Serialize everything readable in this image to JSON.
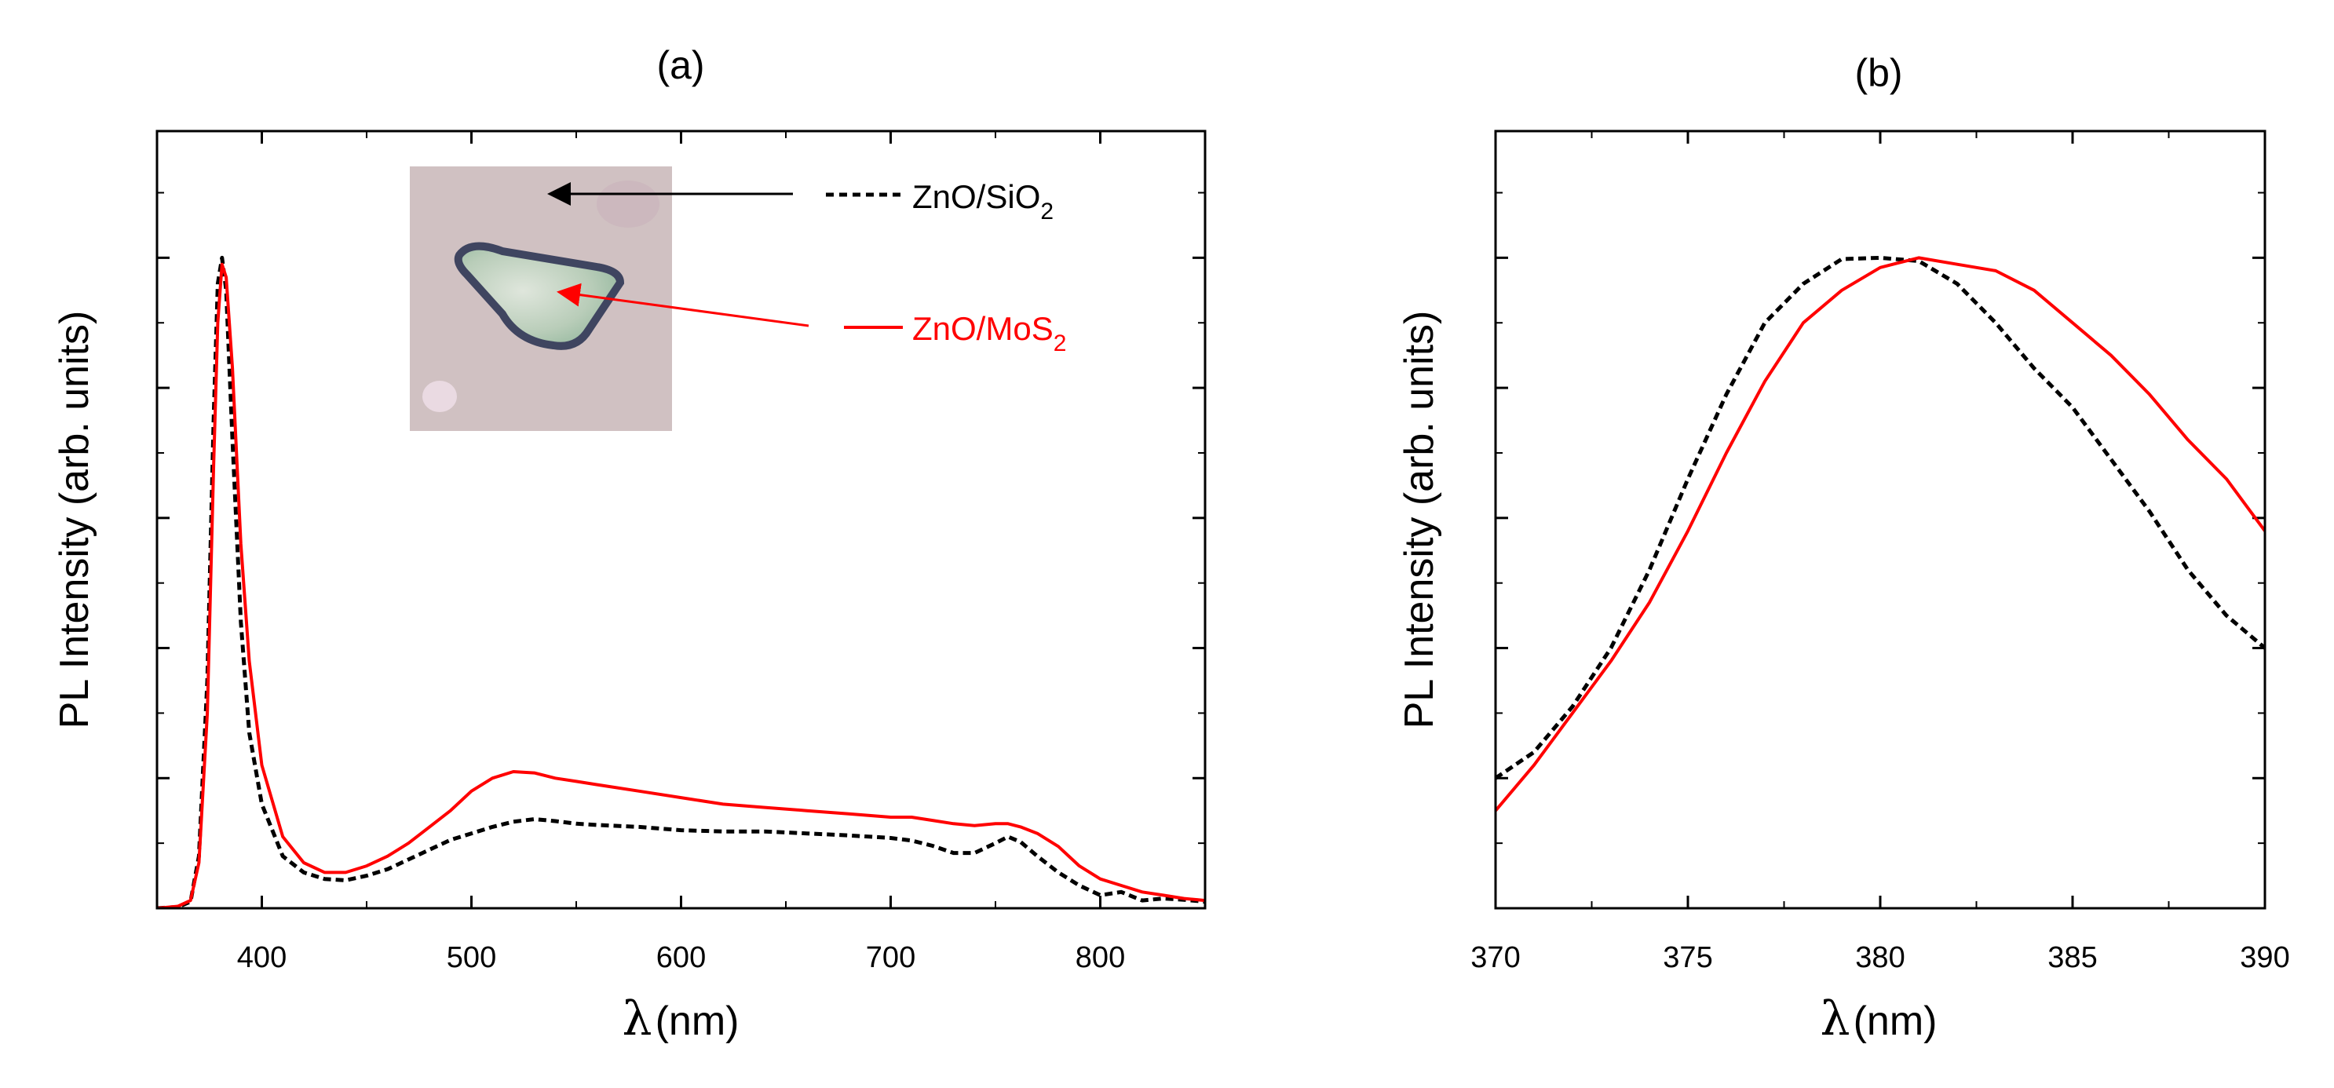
{
  "figure": {
    "inset_label_sio2": "ZnO/SiO",
    "inset_label_sio2_sub": "2",
    "inset_label_mos2": "ZnO/MoS",
    "inset_label_mos2_sub": "2"
  },
  "colors": {
    "sio2": "#000000",
    "mos2": "#ff0000",
    "axis": "#000000"
  },
  "chart_data": [
    {
      "type": "line",
      "panel_label": "(a)",
      "title": "(a)",
      "xlabel_symbol": "λ",
      "xlabel_unit": "(nm)",
      "ylabel": "PL Intensity (arb. units)",
      "xlim": [
        350,
        850
      ],
      "ylim": [
        0,
        1.0
      ],
      "xticks": [
        400,
        500,
        600,
        700,
        800
      ],
      "ytick_count": 5,
      "series": [
        {
          "name": "ZnO/SiO2",
          "style": "dashed",
          "color": "#000000",
          "x": [
            350,
            360,
            366,
            370,
            374,
            377,
            379,
            381,
            383,
            386,
            390,
            394,
            400,
            410,
            420,
            430,
            440,
            450,
            460,
            470,
            480,
            490,
            500,
            510,
            520,
            530,
            540,
            550,
            560,
            580,
            600,
            620,
            640,
            660,
            680,
            700,
            710,
            720,
            730,
            740,
            750,
            756,
            762,
            770,
            780,
            790,
            800,
            810,
            820,
            830,
            840,
            850
          ],
          "y": [
            0,
            0.002,
            0.01,
            0.08,
            0.35,
            0.75,
            0.96,
            1.0,
            0.95,
            0.72,
            0.44,
            0.27,
            0.16,
            0.08,
            0.055,
            0.045,
            0.043,
            0.05,
            0.06,
            0.075,
            0.09,
            0.105,
            0.115,
            0.125,
            0.133,
            0.137,
            0.134,
            0.13,
            0.128,
            0.125,
            0.12,
            0.118,
            0.118,
            0.115,
            0.112,
            0.108,
            0.104,
            0.096,
            0.085,
            0.085,
            0.1,
            0.11,
            0.102,
            0.08,
            0.055,
            0.035,
            0.02,
            0.025,
            0.012,
            0.015,
            0.013,
            0.01
          ]
        },
        {
          "name": "ZnO/MoS2",
          "style": "solid",
          "color": "#ff0000",
          "x": [
            350,
            360,
            366,
            370,
            374,
            377,
            379,
            381,
            383,
            386,
            390,
            394,
            400,
            410,
            420,
            430,
            440,
            450,
            460,
            470,
            480,
            490,
            500,
            510,
            520,
            530,
            540,
            550,
            560,
            580,
            600,
            620,
            640,
            660,
            680,
            700,
            710,
            720,
            730,
            740,
            750,
            756,
            762,
            770,
            780,
            790,
            800,
            810,
            820,
            830,
            840,
            850
          ],
          "y": [
            0,
            0.003,
            0.012,
            0.07,
            0.3,
            0.68,
            0.9,
            0.99,
            0.97,
            0.83,
            0.56,
            0.38,
            0.22,
            0.11,
            0.07,
            0.055,
            0.055,
            0.065,
            0.08,
            0.1,
            0.125,
            0.15,
            0.18,
            0.2,
            0.21,
            0.208,
            0.2,
            0.195,
            0.19,
            0.18,
            0.17,
            0.16,
            0.155,
            0.15,
            0.145,
            0.14,
            0.14,
            0.135,
            0.13,
            0.127,
            0.13,
            0.13,
            0.125,
            0.115,
            0.095,
            0.065,
            0.045,
            0.035,
            0.025,
            0.02,
            0.015,
            0.012
          ]
        }
      ]
    },
    {
      "type": "line",
      "panel_label": "(b)",
      "title": "(b)",
      "xlabel_symbol": "λ",
      "xlabel_unit": "(nm)",
      "ylabel": "PL Intensity (arb. units)",
      "xlim": [
        370,
        390
      ],
      "ylim": [
        0,
        1.0
      ],
      "xticks": [
        370,
        375,
        380,
        385,
        390
      ],
      "ytick_count": 5,
      "series": [
        {
          "name": "ZnO/SiO2",
          "style": "dashed",
          "color": "#000000",
          "x": [
            370,
            371,
            372,
            373,
            374,
            375,
            376,
            377,
            378,
            379,
            380,
            381,
            382,
            383,
            384,
            385,
            386,
            387,
            388,
            389,
            390
          ],
          "y": [
            0.2,
            0.24,
            0.31,
            0.4,
            0.52,
            0.66,
            0.79,
            0.9,
            0.96,
            0.998,
            1.0,
            0.995,
            0.96,
            0.9,
            0.83,
            0.77,
            0.69,
            0.61,
            0.52,
            0.45,
            0.4
          ]
        },
        {
          "name": "ZnO/MoS2",
          "style": "solid",
          "color": "#ff0000",
          "x": [
            370,
            371,
            372,
            373,
            374,
            375,
            376,
            377,
            378,
            379,
            380,
            381,
            382,
            383,
            384,
            385,
            386,
            387,
            388,
            389,
            390
          ],
          "y": [
            0.15,
            0.22,
            0.3,
            0.38,
            0.47,
            0.58,
            0.7,
            0.81,
            0.9,
            0.95,
            0.985,
            1.0,
            0.99,
            0.98,
            0.95,
            0.9,
            0.85,
            0.79,
            0.72,
            0.66,
            0.58
          ]
        }
      ]
    }
  ]
}
